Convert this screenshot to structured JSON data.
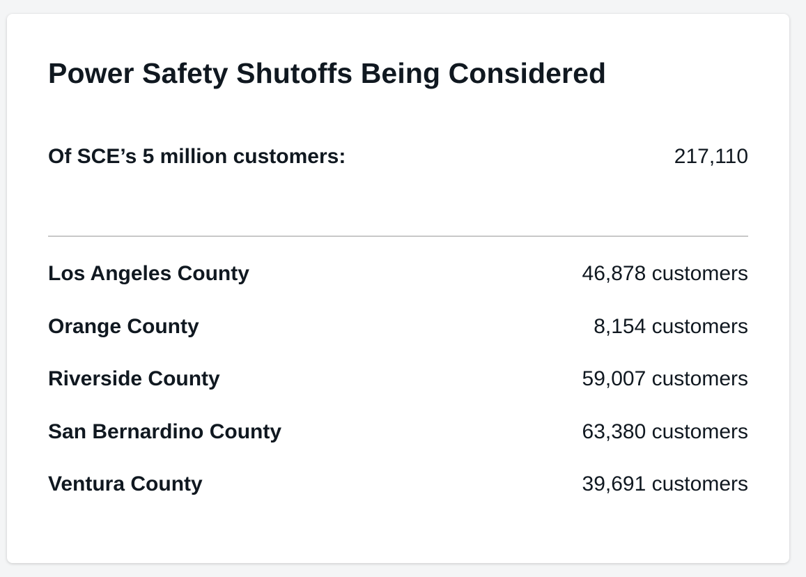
{
  "card": {
    "title": "Power Safety Shutoffs Being Considered",
    "total": {
      "label": "Of SCE’s 5 million customers:",
      "value": "217,110"
    },
    "counties": [
      {
        "name": "Los Angeles County",
        "value": "46,878 customers"
      },
      {
        "name": "Orange County",
        "value": "8,154 customers"
      },
      {
        "name": "Riverside County",
        "value": "59,007 customers"
      },
      {
        "name": "San Bernardino County",
        "value": "63,380 customers"
      },
      {
        "name": "Ventura County",
        "value": "39,691 customers"
      }
    ]
  },
  "colors": {
    "text": "#101820",
    "card_background": "#ffffff",
    "page_background": "#f4f5f6",
    "divider": "#c8c8c8"
  }
}
